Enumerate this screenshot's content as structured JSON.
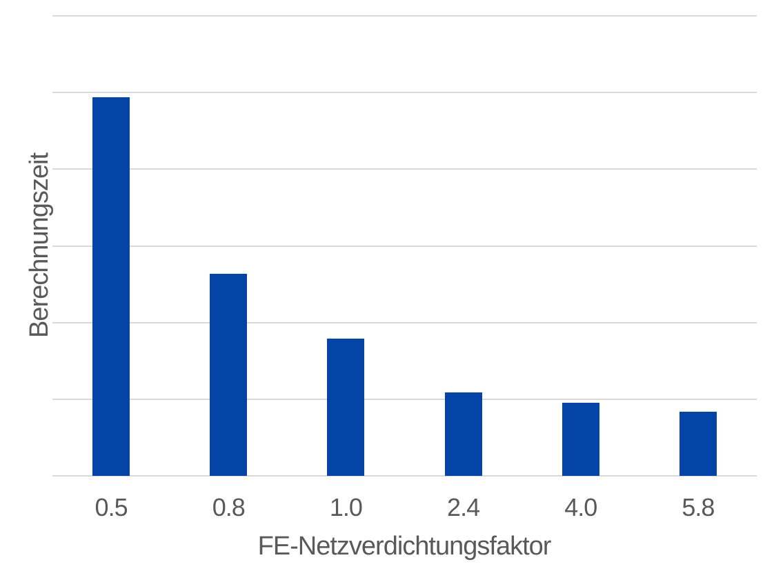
{
  "chart_data": {
    "type": "bar",
    "title": "",
    "categories": [
      "0.5",
      "0.8",
      "1.0",
      "2.4",
      "4.0",
      "5.8"
    ],
    "values": [
      4.94,
      2.64,
      1.79,
      1.09,
      0.95,
      0.84
    ],
    "xlabel": "FE-Netzverdichtungsfaktor",
    "ylabel": "Berechnungszeit",
    "ylim": [
      0,
      6
    ],
    "gridline_step": 1,
    "grid": "horizontal-only",
    "y_tick_labels_visible": false,
    "legend_position": "none",
    "colors": {
      "bar": "#0444A6",
      "gridline": "#D9D9D9",
      "text": "#595959",
      "background": "#FFFFFF"
    }
  }
}
